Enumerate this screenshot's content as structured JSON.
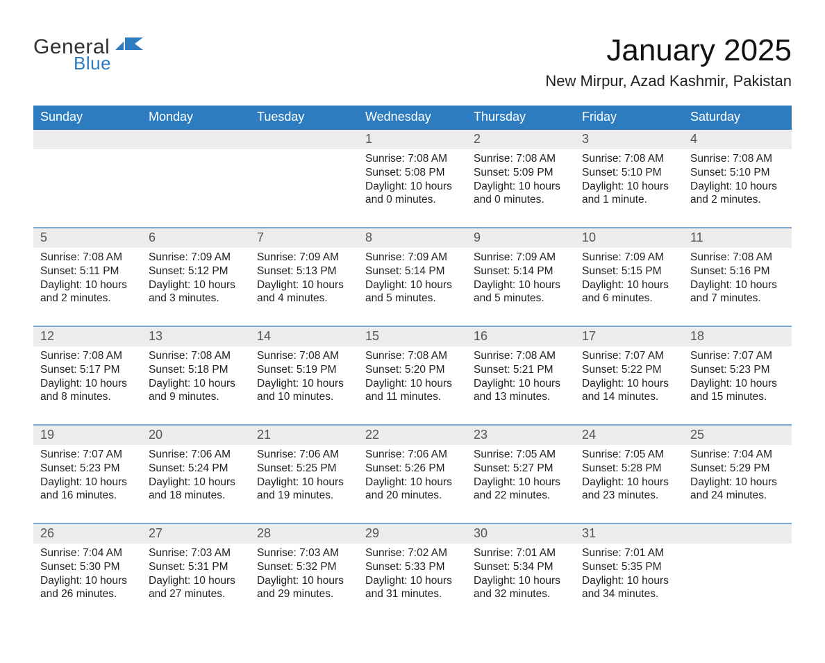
{
  "brand": {
    "word1": "General",
    "word2": "Blue"
  },
  "title": "January 2025",
  "location": "New Mirpur, Azad Kashmir, Pakistan",
  "colors": {
    "accent": "#2d7cc0",
    "row_header_bg": "#ececec",
    "row_divider": "#7aa9d4",
    "background": "#ffffff",
    "text": "#222222"
  },
  "daysOfWeek": [
    "Sunday",
    "Monday",
    "Tuesday",
    "Wednesday",
    "Thursday",
    "Friday",
    "Saturday"
  ],
  "weeks": [
    [
      null,
      null,
      null,
      {
        "n": "1",
        "sunrise": "7:08 AM",
        "sunset": "5:08 PM",
        "daylight": "10 hours and 0 minutes."
      },
      {
        "n": "2",
        "sunrise": "7:08 AM",
        "sunset": "5:09 PM",
        "daylight": "10 hours and 0 minutes."
      },
      {
        "n": "3",
        "sunrise": "7:08 AM",
        "sunset": "5:10 PM",
        "daylight": "10 hours and 1 minute."
      },
      {
        "n": "4",
        "sunrise": "7:08 AM",
        "sunset": "5:10 PM",
        "daylight": "10 hours and 2 minutes."
      }
    ],
    [
      {
        "n": "5",
        "sunrise": "7:08 AM",
        "sunset": "5:11 PM",
        "daylight": "10 hours and 2 minutes."
      },
      {
        "n": "6",
        "sunrise": "7:09 AM",
        "sunset": "5:12 PM",
        "daylight": "10 hours and 3 minutes."
      },
      {
        "n": "7",
        "sunrise": "7:09 AM",
        "sunset": "5:13 PM",
        "daylight": "10 hours and 4 minutes."
      },
      {
        "n": "8",
        "sunrise": "7:09 AM",
        "sunset": "5:14 PM",
        "daylight": "10 hours and 5 minutes."
      },
      {
        "n": "9",
        "sunrise": "7:09 AM",
        "sunset": "5:14 PM",
        "daylight": "10 hours and 5 minutes."
      },
      {
        "n": "10",
        "sunrise": "7:09 AM",
        "sunset": "5:15 PM",
        "daylight": "10 hours and 6 minutes."
      },
      {
        "n": "11",
        "sunrise": "7:08 AM",
        "sunset": "5:16 PM",
        "daylight": "10 hours and 7 minutes."
      }
    ],
    [
      {
        "n": "12",
        "sunrise": "7:08 AM",
        "sunset": "5:17 PM",
        "daylight": "10 hours and 8 minutes."
      },
      {
        "n": "13",
        "sunrise": "7:08 AM",
        "sunset": "5:18 PM",
        "daylight": "10 hours and 9 minutes."
      },
      {
        "n": "14",
        "sunrise": "7:08 AM",
        "sunset": "5:19 PM",
        "daylight": "10 hours and 10 minutes."
      },
      {
        "n": "15",
        "sunrise": "7:08 AM",
        "sunset": "5:20 PM",
        "daylight": "10 hours and 11 minutes."
      },
      {
        "n": "16",
        "sunrise": "7:08 AM",
        "sunset": "5:21 PM",
        "daylight": "10 hours and 13 minutes."
      },
      {
        "n": "17",
        "sunrise": "7:07 AM",
        "sunset": "5:22 PM",
        "daylight": "10 hours and 14 minutes."
      },
      {
        "n": "18",
        "sunrise": "7:07 AM",
        "sunset": "5:23 PM",
        "daylight": "10 hours and 15 minutes."
      }
    ],
    [
      {
        "n": "19",
        "sunrise": "7:07 AM",
        "sunset": "5:23 PM",
        "daylight": "10 hours and 16 minutes."
      },
      {
        "n": "20",
        "sunrise": "7:06 AM",
        "sunset": "5:24 PM",
        "daylight": "10 hours and 18 minutes."
      },
      {
        "n": "21",
        "sunrise": "7:06 AM",
        "sunset": "5:25 PM",
        "daylight": "10 hours and 19 minutes."
      },
      {
        "n": "22",
        "sunrise": "7:06 AM",
        "sunset": "5:26 PM",
        "daylight": "10 hours and 20 minutes."
      },
      {
        "n": "23",
        "sunrise": "7:05 AM",
        "sunset": "5:27 PM",
        "daylight": "10 hours and 22 minutes."
      },
      {
        "n": "24",
        "sunrise": "7:05 AM",
        "sunset": "5:28 PM",
        "daylight": "10 hours and 23 minutes."
      },
      {
        "n": "25",
        "sunrise": "7:04 AM",
        "sunset": "5:29 PM",
        "daylight": "10 hours and 24 minutes."
      }
    ],
    [
      {
        "n": "26",
        "sunrise": "7:04 AM",
        "sunset": "5:30 PM",
        "daylight": "10 hours and 26 minutes."
      },
      {
        "n": "27",
        "sunrise": "7:03 AM",
        "sunset": "5:31 PM",
        "daylight": "10 hours and 27 minutes."
      },
      {
        "n": "28",
        "sunrise": "7:03 AM",
        "sunset": "5:32 PM",
        "daylight": "10 hours and 29 minutes."
      },
      {
        "n": "29",
        "sunrise": "7:02 AM",
        "sunset": "5:33 PM",
        "daylight": "10 hours and 31 minutes."
      },
      {
        "n": "30",
        "sunrise": "7:01 AM",
        "sunset": "5:34 PM",
        "daylight": "10 hours and 32 minutes."
      },
      {
        "n": "31",
        "sunrise": "7:01 AM",
        "sunset": "5:35 PM",
        "daylight": "10 hours and 34 minutes."
      },
      null
    ]
  ],
  "labels": {
    "sunrise": "Sunrise: ",
    "sunset": "Sunset: ",
    "daylight": "Daylight: "
  }
}
